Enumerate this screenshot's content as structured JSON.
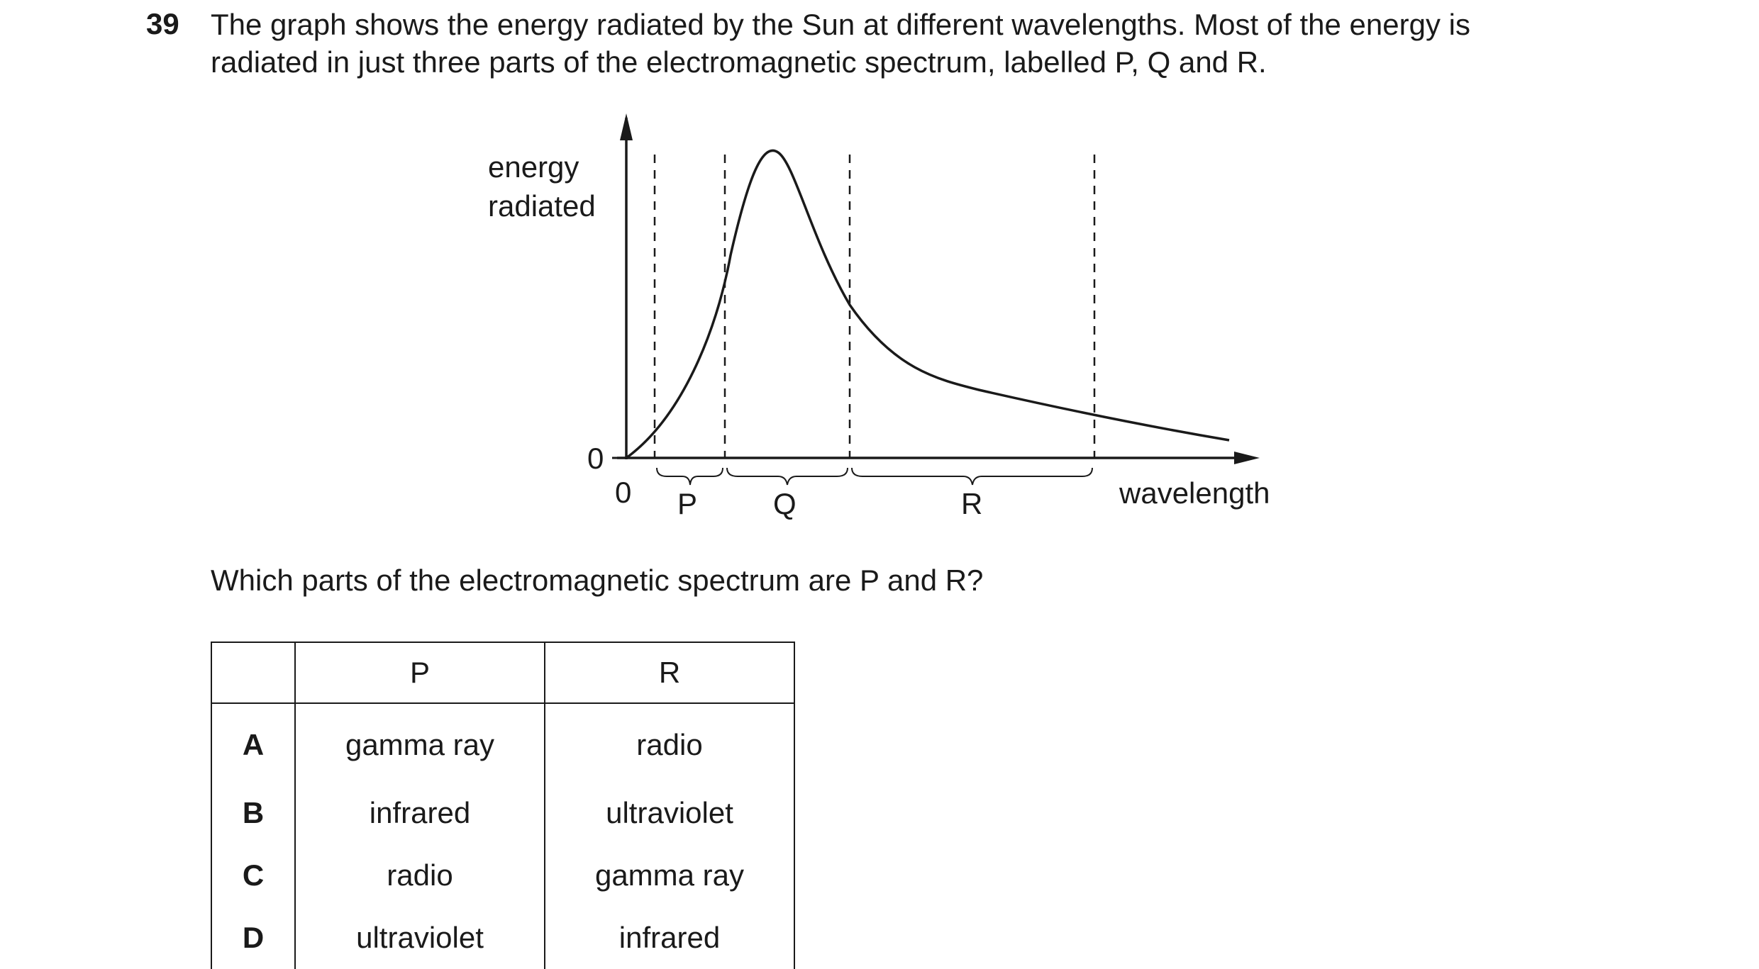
{
  "question": {
    "number": "39",
    "text_line1": "The graph shows the energy radiated by the Sun at different wavelengths. Most of the energy is",
    "text_line2": "radiated in just three parts of the electromagnetic spectrum, labelled P, Q and R.",
    "prompt": "Which parts of the electromagnetic spectrum are P and R?"
  },
  "graph": {
    "y_label_line1": "energy",
    "y_label_line2": "radiated",
    "y_zero": "0",
    "x_zero": "0",
    "x_label": "wavelength",
    "regions": [
      "P",
      "Q",
      "R"
    ]
  },
  "table": {
    "headers": [
      "",
      "P",
      "R"
    ],
    "rows": [
      {
        "letter": "A",
        "p": "gamma ray",
        "r": "radio"
      },
      {
        "letter": "B",
        "p": "infrared",
        "r": "ultraviolet"
      },
      {
        "letter": "C",
        "p": "radio",
        "r": "gamma ray"
      },
      {
        "letter": "D",
        "p": "ultraviolet",
        "r": "infrared"
      }
    ]
  }
}
